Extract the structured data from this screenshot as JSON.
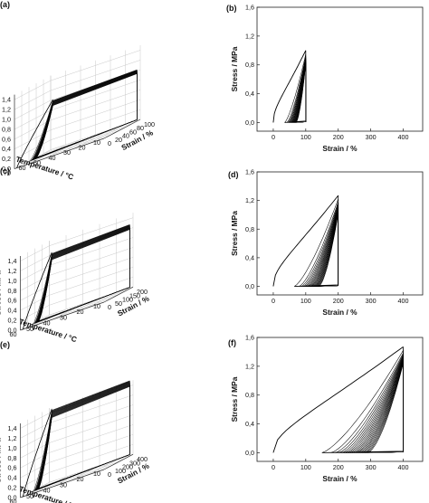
{
  "panel_labels": [
    "(a)",
    "(b)",
    "(c)",
    "(d)",
    "(e)",
    "(f)"
  ],
  "chart_data": [
    {
      "type": "line",
      "projection": "3d",
      "xlabel": "Temperature / °C",
      "ylabel": "Strain / %",
      "zlabel": "Stress / MPa",
      "x_ticks": [
        "10",
        "20",
        "30",
        "40",
        "50",
        "60",
        "70"
      ],
      "y_ticks": [
        "0",
        "20",
        "40",
        "60",
        "80",
        "100"
      ],
      "z_ticks": [
        "0,0",
        "0,2",
        "0,4",
        "0,6",
        "0,8",
        "1,0",
        "1,2",
        "1,4"
      ],
      "xlim": [
        10,
        70
      ],
      "ylim": [
        0,
        100
      ],
      "zlim": [
        0,
        1.5
      ],
      "max_strain": 100,
      "peak_stress": 1.0,
      "cycles": 20,
      "grid": true
    },
    {
      "type": "line",
      "xlabel": "Strain / %",
      "ylabel": "Stress / MPa",
      "x_ticks": [
        "0",
        "100",
        "200",
        "300",
        "400"
      ],
      "y_ticks": [
        "0,0",
        "0,4",
        "0,8",
        "1,2",
        "1,6"
      ],
      "xlim": [
        -50,
        460
      ],
      "ylim": [
        -0.12,
        1.6
      ],
      "max_strain": 100,
      "peak_stress": 1.0,
      "residual_strain": [
        35,
        70
      ],
      "final_peak": 0.85,
      "cycles": 20
    },
    {
      "type": "line",
      "projection": "3d",
      "xlabel": "Temperature / °C",
      "ylabel": "Strain / %",
      "zlabel": "Stress / MPa",
      "x_ticks": [
        "10",
        "20",
        "30",
        "40",
        "50",
        "60"
      ],
      "y_ticks": [
        "0",
        "50",
        "100",
        "150",
        "200"
      ],
      "z_ticks": [
        "0,0",
        "0,2",
        "0,4",
        "0,6",
        "0,8",
        "1,0",
        "1,2",
        "1,4"
      ],
      "xlim": [
        10,
        60
      ],
      "ylim": [
        0,
        200
      ],
      "zlim": [
        0,
        1.5
      ],
      "max_strain": 200,
      "peak_stress": 1.25,
      "cycles": 20,
      "grid": true
    },
    {
      "type": "line",
      "xlabel": "Strain / %",
      "ylabel": "Stress / MPa",
      "x_ticks": [
        "0",
        "100",
        "200",
        "300",
        "400"
      ],
      "y_ticks": [
        "0,0",
        "0,4",
        "0,8",
        "1,2",
        "1,6"
      ],
      "xlim": [
        -50,
        460
      ],
      "ylim": [
        -0.12,
        1.6
      ],
      "max_strain": 200,
      "peak_stress": 1.27,
      "residual_strain": [
        65,
        140
      ],
      "final_peak": 1.05,
      "cycles": 20
    },
    {
      "type": "line",
      "projection": "3d",
      "xlabel": "Temperature / °C",
      "ylabel": "Strain / %",
      "zlabel": "Stress / MPa",
      "x_ticks": [
        "10",
        "20",
        "30",
        "40",
        "50",
        "60"
      ],
      "y_ticks": [
        "0",
        "100",
        "200",
        "300",
        "400"
      ],
      "z_ticks": [
        "0,0",
        "0,2",
        "0,4",
        "0,6",
        "0,8",
        "1,0",
        "1,2",
        "1,4"
      ],
      "xlim": [
        10,
        60
      ],
      "ylim": [
        0,
        400
      ],
      "zlim": [
        0,
        1.5
      ],
      "max_strain": 400,
      "peak_stress": 1.47,
      "cycles": 20,
      "grid": true
    },
    {
      "type": "line",
      "xlabel": "Strain / %",
      "ylabel": "Stress / MPa",
      "x_ticks": [
        "0",
        "100",
        "200",
        "300",
        "400"
      ],
      "y_ticks": [
        "0,0",
        "0,4",
        "0,8",
        "1,2",
        "1,6"
      ],
      "xlim": [
        -50,
        460
      ],
      "ylim": [
        -0.12,
        1.6
      ],
      "max_strain": 400,
      "peak_stress": 1.47,
      "residual_strain": [
        150,
        290
      ],
      "final_peak": 1.27,
      "cycles": 20
    }
  ]
}
